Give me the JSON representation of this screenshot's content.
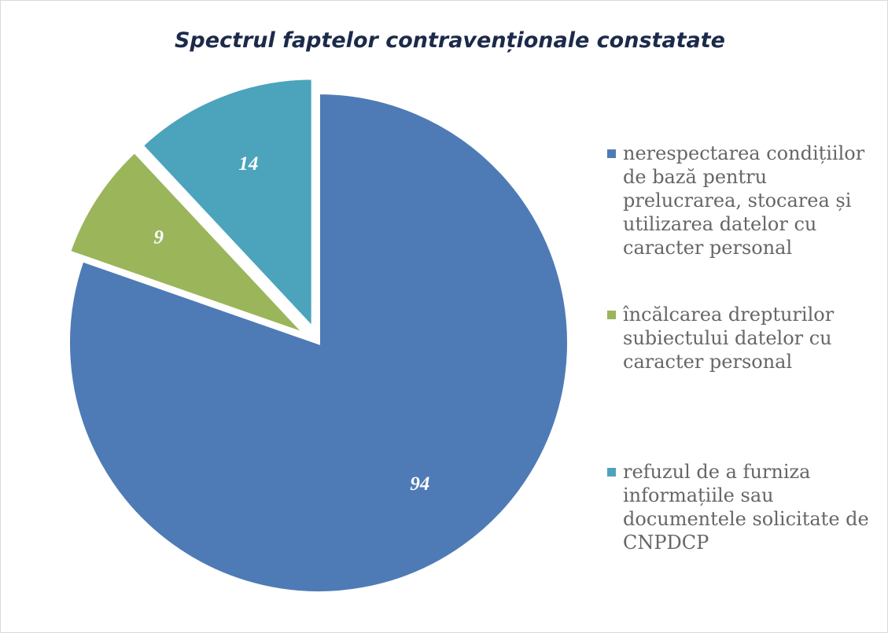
{
  "chart_data": {
    "type": "pie",
    "title": "Spectrul faptelor contravenționale constatate",
    "categories": [
      "nerespectarea condițiilor de bază pentru prelucrarea, stocarea și utilizarea datelor cu caracter personal",
      "încălcarea drepturilor subiectului datelor cu caracter personal",
      "refuzul de a furniza informațiile sau documentele solicitate de CNPDCP"
    ],
    "values": [
      94,
      9,
      14
    ],
    "colors": [
      "#4e7bb5",
      "#9bb55b",
      "#4ba4bc"
    ],
    "exploded": [
      false,
      true,
      true
    ],
    "legend": "right"
  }
}
